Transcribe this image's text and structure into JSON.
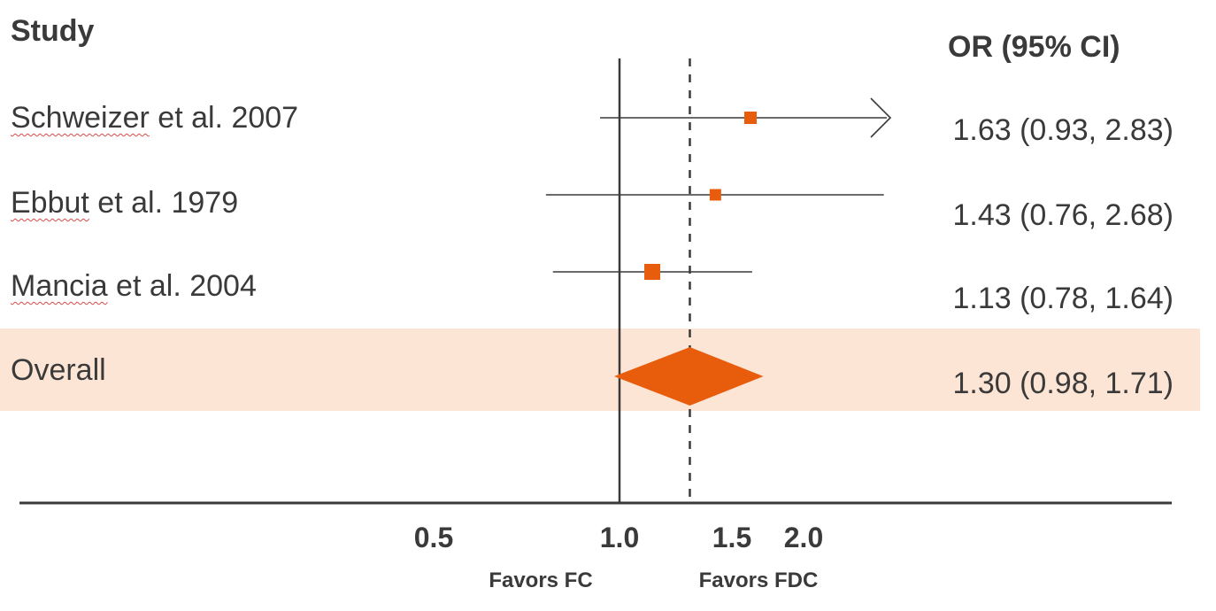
{
  "headers": {
    "study": "Study",
    "or": "OR (95% CI)"
  },
  "studies": [
    {
      "author": "Schweizer",
      "rest": " et al. 2007",
      "or_text": "1.63 (0.93, 2.83)"
    },
    {
      "author": "Ebbut",
      "rest": " et al. 1979",
      "or_text": "1.43 (0.76, 2.68)"
    },
    {
      "author": "Mancia",
      "rest": " et al. 2004",
      "or_text": "1.13 (0.78, 1.64)"
    }
  ],
  "overall": {
    "label": "Overall",
    "or_text": "1.30 (0.98, 1.71)"
  },
  "axis": {
    "ticks": [
      "0.5",
      "1.0",
      "1.5",
      "2.0"
    ],
    "favors_left": "Favors FC",
    "favors_right": "Favors FDC"
  },
  "colors": {
    "marker": "#e85d0c",
    "band": "#fde5d6",
    "line": "#3a3a3a"
  },
  "chart_data": {
    "type": "forest",
    "scale": "log",
    "reference_line": 1.0,
    "pooled_line": 1.3,
    "ticks": [
      0.5,
      1.0,
      1.5,
      2.0
    ],
    "studies": [
      {
        "name": "Schweizer et al. 2007",
        "or": 1.63,
        "lower": 0.93,
        "upper": 2.83,
        "arrow_right": true
      },
      {
        "name": "Ebbut et al. 1979",
        "or": 1.43,
        "lower": 0.76,
        "upper": 2.68
      },
      {
        "name": "Mancia et al. 2004",
        "or": 1.13,
        "lower": 0.78,
        "upper": 1.64
      }
    ],
    "overall": {
      "name": "Overall",
      "or": 1.3,
      "lower": 0.98,
      "upper": 1.71
    },
    "legend": "none"
  }
}
